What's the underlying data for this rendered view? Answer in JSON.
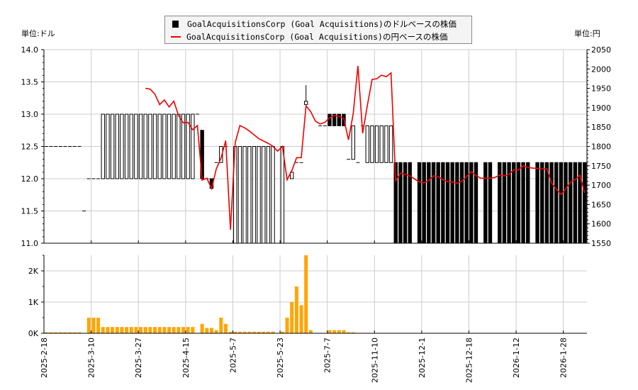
{
  "legend": {
    "usd_label": "GoalAcquisitionsCorp (Goal Acquisitions)のドルベースの株価",
    "jpy_label": "GoalAcquisitionsCorp (Goal Acquisitions)の円ベースの株価"
  },
  "units": {
    "left": "単位:ドル",
    "right": "単位:円"
  },
  "colors": {
    "usd_candle": "#000000",
    "jpy_line": "#ee0000",
    "volume": "#ffa500",
    "grid": "#cccccc"
  },
  "chart_data": {
    "type": "candlestick+line+bar",
    "x_tick_labels": [
      "2025-2-18",
      "2025-3-10",
      "2025-3-27",
      "2025-4-15",
      "2025-5-7",
      "2025-5-23",
      "2025-7-7",
      "2025-11-10",
      "2025-12-1",
      "2025-12-18",
      "2026-1-12",
      "2026-1-28"
    ],
    "usd": {
      "ylim": [
        11.0,
        14.0
      ],
      "y_tick_labels": [
        "11.0",
        "11.5",
        "12.0",
        "12.5",
        "13.0",
        "13.5",
        "14.0"
      ],
      "ohlc": [
        [
          12.5,
          12.5,
          12.5,
          12.5
        ],
        [
          12.5,
          12.5,
          12.5,
          12.5
        ],
        [
          12.5,
          12.5,
          12.5,
          12.5
        ],
        [
          12.5,
          12.5,
          12.5,
          12.5
        ],
        [
          12.5,
          12.5,
          12.5,
          12.5
        ],
        [
          12.5,
          12.5,
          12.5,
          12.5
        ],
        [
          12.5,
          12.5,
          12.5,
          12.5
        ],
        [
          12.5,
          12.5,
          12.5,
          12.5
        ],
        [
          11.5,
          11.5,
          11.5,
          11.5
        ],
        [
          12,
          12,
          12,
          12
        ],
        [
          12,
          12,
          12,
          12
        ],
        [
          12,
          12,
          12,
          12
        ],
        [
          12,
          13,
          12,
          13
        ],
        [
          12,
          13,
          12,
          13
        ],
        [
          12,
          13,
          12,
          13
        ],
        [
          12,
          13,
          12,
          13
        ],
        [
          12,
          13,
          12,
          13
        ],
        [
          12,
          13,
          12,
          13
        ],
        [
          12,
          13,
          12,
          13
        ],
        [
          12,
          13,
          12,
          13
        ],
        [
          12,
          13,
          12,
          13
        ],
        [
          12,
          13,
          12,
          13
        ],
        [
          12,
          13,
          12,
          13
        ],
        [
          12,
          13,
          12,
          13
        ],
        [
          12,
          13,
          12,
          13
        ],
        [
          12,
          13,
          12,
          13
        ],
        [
          12,
          13,
          12,
          13
        ],
        [
          12,
          13,
          12,
          13
        ],
        [
          12,
          13,
          12,
          13
        ],
        [
          12,
          13,
          12,
          13
        ],
        [
          12,
          13,
          12,
          13
        ],
        [
          12,
          13,
          12,
          13
        ],
        [
          13,
          13,
          13,
          13
        ],
        [
          12.75,
          12.75,
          12,
          12
        ],
        [
          12,
          12,
          12,
          12
        ],
        [
          12,
          12,
          11.85,
          11.85
        ],
        [
          12.25,
          12.25,
          12.25,
          12.25
        ],
        [
          12.25,
          12.5,
          12.25,
          12.5
        ],
        [
          12.5,
          12.5,
          12.5,
          12.5
        ],
        [
          11,
          11,
          11,
          11
        ],
        [
          11,
          12.5,
          11,
          12.5
        ],
        [
          11,
          12.5,
          11,
          12.5
        ],
        [
          11,
          12.5,
          11,
          12.5
        ],
        [
          11,
          12.5,
          11,
          12.5
        ],
        [
          11,
          12.5,
          11,
          12.5
        ],
        [
          11,
          12.5,
          11,
          12.5
        ],
        [
          11,
          12.5,
          11,
          12.5
        ],
        [
          11,
          12.5,
          11,
          12.5
        ],
        [
          11,
          12.5,
          11,
          12.5
        ],
        null,
        [
          11,
          12.5,
          11,
          12.5
        ],
        null,
        [
          12,
          12.1,
          12,
          12.1
        ],
        [
          12.25,
          12.25,
          12.25,
          12.25
        ],
        [
          12.25,
          12.25,
          12.25,
          12.25
        ],
        [
          13.15,
          13.45,
          13.15,
          13.2
        ],
        null,
        null,
        [
          12.82,
          12.82,
          12.82,
          12.82
        ],
        [
          12.82,
          12.82,
          12.82,
          12.82
        ],
        [
          13,
          13,
          12.82,
          12.82
        ],
        [
          13,
          13,
          12.82,
          12.82
        ],
        [
          13,
          13,
          12.82,
          12.82
        ],
        [
          13,
          13,
          12.82,
          12.82
        ],
        [
          12.3,
          12.3,
          12.3,
          12.3
        ],
        [
          12.3,
          12.82,
          12.3,
          12.82
        ],
        [
          12.25,
          12.25,
          12.25,
          12.25
        ],
        [
          12.82,
          12.82,
          12.82,
          12.82
        ],
        [
          12.25,
          12.82,
          12.25,
          12.82
        ],
        [
          12.25,
          12.82,
          12.25,
          12.82
        ],
        [
          12.25,
          12.82,
          12.25,
          12.82
        ],
        [
          12.25,
          12.82,
          12.25,
          12.82
        ],
        [
          12.25,
          12.82,
          12.25,
          12.82
        ],
        [
          12.25,
          12.82,
          12.25,
          12.82
        ],
        [
          12.25,
          12.25,
          11,
          11
        ],
        [
          12.25,
          12.25,
          11,
          11
        ],
        [
          12.25,
          12.25,
          11,
          11
        ],
        [
          12.25,
          12.25,
          11,
          11
        ],
        null,
        [
          12.25,
          12.25,
          11,
          11
        ],
        [
          12.25,
          12.25,
          11,
          11
        ],
        [
          12.25,
          12.25,
          11,
          11
        ],
        [
          12.25,
          12.25,
          11,
          11
        ],
        [
          12.25,
          12.25,
          11,
          11
        ],
        [
          12.25,
          12.25,
          11,
          11
        ],
        [
          12.25,
          12.25,
          11,
          11
        ],
        [
          12.25,
          12.25,
          11,
          11
        ],
        [
          12.25,
          12.25,
          11,
          11
        ],
        [
          12.25,
          12.25,
          11,
          11
        ],
        [
          12.25,
          12.25,
          11,
          11
        ],
        [
          12.25,
          12.25,
          11,
          11
        ],
        [
          12.25,
          12.25,
          11,
          11
        ],
        null,
        [
          12.25,
          12.25,
          11,
          11
        ],
        [
          12.25,
          12.25,
          11,
          11
        ],
        null,
        [
          12.25,
          12.25,
          11,
          11
        ],
        [
          12.25,
          12.25,
          11,
          11
        ],
        [
          12.25,
          12.25,
          11,
          11
        ],
        [
          12.25,
          12.25,
          11,
          11
        ],
        [
          12.25,
          12.25,
          11,
          11
        ],
        [
          12.25,
          12.25,
          11,
          11
        ],
        [
          12.25,
          12.25,
          11,
          11
        ],
        null,
        [
          12.25,
          12.25,
          11,
          11
        ],
        [
          12.25,
          12.25,
          11,
          11
        ],
        [
          12.25,
          12.25,
          11,
          11
        ],
        [
          12.25,
          12.25,
          11,
          11
        ],
        [
          12.25,
          12.25,
          11,
          11
        ],
        [
          12.25,
          12.25,
          11,
          11
        ],
        [
          12.25,
          12.25,
          11,
          11
        ],
        [
          12.25,
          12.25,
          11,
          11
        ],
        [
          12.25,
          12.25,
          11,
          11
        ],
        [
          12.25,
          12.25,
          11,
          11
        ],
        [
          12.25,
          12.25,
          11,
          11
        ]
      ]
    },
    "jpy": {
      "ylim": [
        1550,
        2050
      ],
      "y_tick_labels": [
        "1550",
        "1600",
        "1650",
        "1700",
        "1750",
        "1800",
        "1850",
        "1900",
        "1950",
        "2000",
        "2050"
      ],
      "values": [
        null,
        null,
        null,
        null,
        null,
        null,
        null,
        null,
        null,
        null,
        null,
        null,
        null,
        null,
        null,
        null,
        null,
        null,
        null,
        null,
        null,
        1950,
        1948,
        1935,
        1908,
        1920,
        1902,
        1917,
        1880,
        1861,
        1862,
        1843,
        1854,
        1713,
        1718,
        1691,
        1742,
        1770,
        1815,
        1585,
        1810,
        1854,
        1848,
        1840,
        1830,
        1820,
        1814,
        1808,
        1800,
        1788,
        1800,
        1714,
        1738,
        1771,
        1771,
        1905,
        1890,
        1865,
        1858,
        1862,
        1874,
        1880,
        1878,
        1872,
        1817,
        1885,
        2008,
        1834,
        1907,
        1973,
        1975,
        1984,
        1980,
        1990,
        1711,
        1731,
        1728,
        1724,
        1716,
        1708,
        1706,
        1712,
        1724,
        1722,
        1714,
        1709,
        1708,
        1705,
        1710,
        1722,
        1735,
        1725,
        1718,
        1718,
        1718,
        1720,
        1726,
        1724,
        1728,
        1740,
        1739,
        1750,
        1746,
        1744,
        1743,
        1742,
        1742,
        1706,
        1690,
        1676,
        1690,
        1708,
        1714,
        1726,
        1680
      ]
    },
    "volume": {
      "ylim": [
        0,
        2500
      ],
      "y_tick_labels": [
        "0K",
        "1K",
        "2K"
      ],
      "values": [
        30,
        30,
        30,
        30,
        30,
        30,
        30,
        30,
        0,
        500,
        500,
        500,
        200,
        200,
        200,
        200,
        200,
        200,
        200,
        200,
        200,
        200,
        200,
        200,
        200,
        200,
        200,
        200,
        200,
        200,
        200,
        200,
        0,
        300,
        170,
        170,
        100,
        500,
        300,
        50,
        50,
        50,
        50,
        50,
        50,
        50,
        50,
        50,
        50,
        0,
        50,
        500,
        1000,
        1500,
        900,
        2500,
        100,
        0,
        0,
        0,
        100,
        100,
        100,
        100,
        30,
        30,
        0,
        0,
        0,
        0,
        0,
        0,
        0,
        0,
        0,
        0,
        0,
        0,
        0,
        0,
        0,
        0,
        0,
        0,
        0,
        0,
        0,
        0,
        0,
        0,
        0,
        0,
        0,
        0,
        0,
        0,
        0,
        0,
        0,
        0,
        0,
        0,
        0,
        0,
        0,
        0,
        0,
        0,
        0,
        0,
        0,
        0,
        0,
        0,
        0
      ]
    },
    "grid": true,
    "legend_position": "top-center"
  }
}
